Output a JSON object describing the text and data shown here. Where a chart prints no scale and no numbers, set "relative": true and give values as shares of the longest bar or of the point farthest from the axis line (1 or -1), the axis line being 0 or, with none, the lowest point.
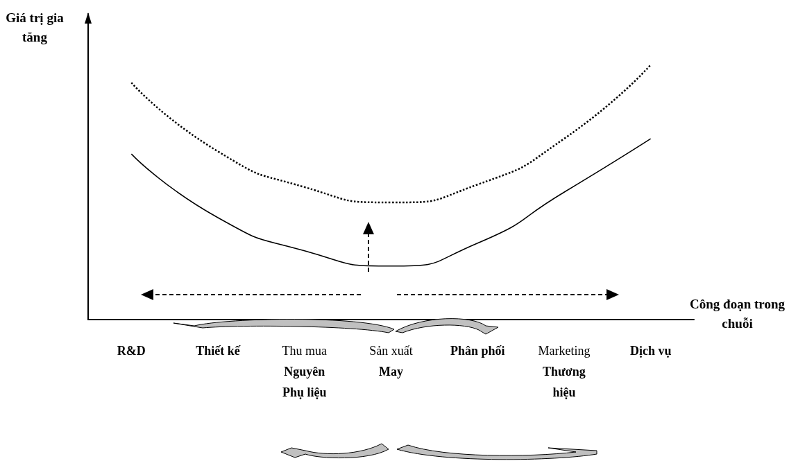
{
  "chart_data": {
    "type": "line",
    "relative": true,
    "xlabel": "Công đoạn trong chuỗi",
    "ylabel": "Giá trị gia tăng",
    "categories": [
      "R&D",
      "Thiết kế",
      "Thu mua\nNguyên\nPhụ liệu",
      "Sản xuất\nMay",
      "Phân phối",
      "Marketing\nThương\nhiệu",
      "Dịch vụ"
    ],
    "series": [
      {
        "color": "#000000",
        "line_style": "solid",
        "values": [
          0.65,
          0.4,
          0.27,
          0.21,
          0.3,
          0.5,
          0.71
        ]
      },
      {
        "color": "#000000",
        "line_style": "dotted",
        "values": [
          0.93,
          0.66,
          0.52,
          0.46,
          0.53,
          0.71,
          1
        ]
      }
    ],
    "marker": "none"
  }
}
